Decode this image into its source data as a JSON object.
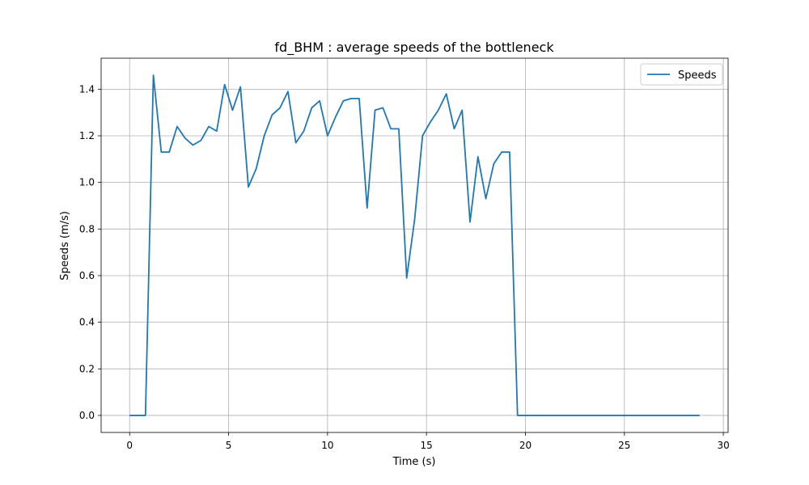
{
  "chart_data": {
    "type": "line",
    "title": "fd_BHM : average speeds of the bottleneck",
    "xlabel": "Time (s)",
    "ylabel": "Speeds (m/s)",
    "xlim": [
      -1.44,
      30.24
    ],
    "ylim": [
      -0.073,
      1.533
    ],
    "xticks": [
      0,
      5,
      10,
      15,
      20,
      25,
      30
    ],
    "yticks": [
      0.0,
      0.2,
      0.4,
      0.6,
      0.8,
      1.0,
      1.2,
      1.4
    ],
    "xtick_labels": [
      "0",
      "5",
      "10",
      "15",
      "20",
      "25",
      "30"
    ],
    "ytick_labels": [
      "0.0",
      "0.2",
      "0.4",
      "0.6",
      "0.8",
      "1.0",
      "1.2",
      "1.4"
    ],
    "grid": true,
    "legend": {
      "position": "top-right"
    },
    "series": [
      {
        "name": "Speeds",
        "color": "#1f77b4",
        "x": [
          0,
          0.8,
          1.2,
          1.6,
          2.0,
          2.4,
          2.8,
          3.2,
          3.6,
          4.0,
          4.4,
          4.8,
          5.2,
          5.6,
          6.0,
          6.4,
          6.8,
          7.2,
          7.6,
          8.0,
          8.4,
          8.8,
          9.2,
          9.6,
          10.0,
          10.4,
          10.8,
          11.2,
          11.6,
          12.0,
          12.4,
          12.8,
          13.2,
          13.6,
          14.0,
          14.4,
          14.8,
          15.2,
          15.6,
          16.0,
          16.4,
          16.8,
          17.2,
          17.6,
          18.0,
          18.4,
          18.8,
          19.2,
          19.6,
          20.0,
          28.8
        ],
        "values": [
          0.0,
          0.0,
          1.46,
          1.13,
          1.13,
          1.24,
          1.19,
          1.16,
          1.18,
          1.24,
          1.22,
          1.42,
          1.31,
          1.41,
          0.98,
          1.06,
          1.2,
          1.29,
          1.32,
          1.39,
          1.17,
          1.22,
          1.32,
          1.35,
          1.2,
          1.28,
          1.35,
          1.36,
          1.36,
          0.89,
          1.31,
          1.32,
          1.23,
          1.23,
          0.59,
          0.84,
          1.2,
          1.26,
          1.31,
          1.38,
          1.23,
          1.31,
          0.83,
          1.11,
          0.93,
          1.08,
          1.13,
          1.13,
          0.0,
          0.0,
          0.0
        ]
      }
    ]
  }
}
